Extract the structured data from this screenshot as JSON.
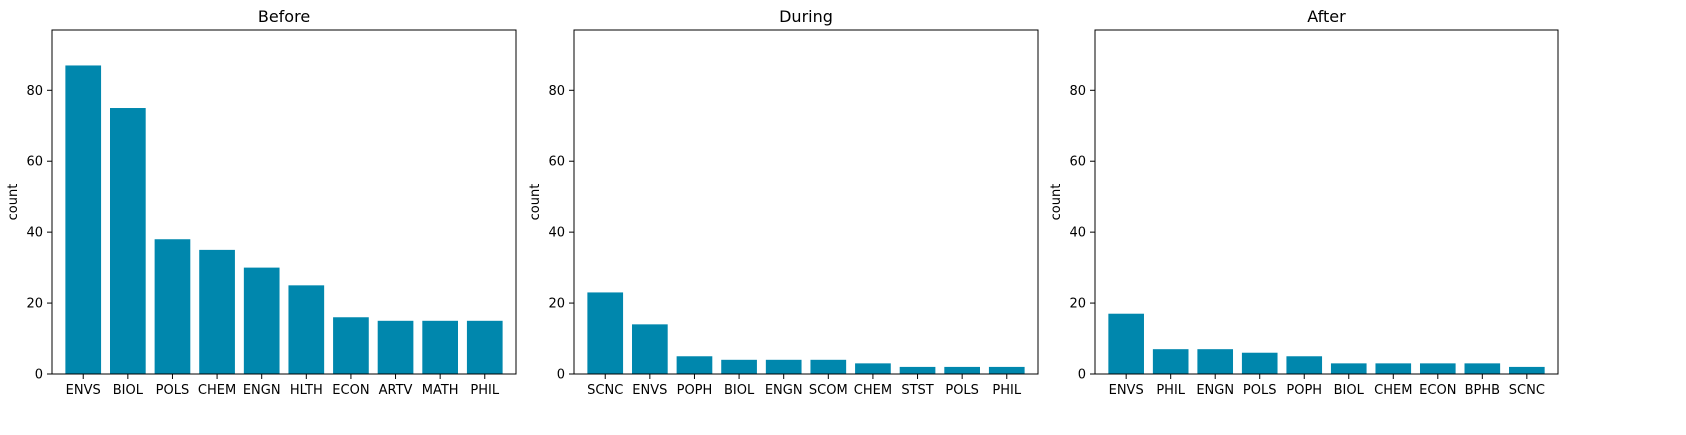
{
  "chart_data": [
    {
      "type": "bar",
      "title": "Before",
      "ylabel": "count",
      "xlabel": "",
      "ylim": [
        0,
        97
      ],
      "yticks": [
        0,
        20,
        40,
        60,
        80
      ],
      "color": "#0087ad",
      "categories": [
        "ENVS",
        "BIOL",
        "POLS",
        "CHEM",
        "ENGN",
        "HLTH",
        "ECON",
        "ARTV",
        "MATH",
        "PHIL"
      ],
      "values": [
        87,
        75,
        38,
        35,
        30,
        25,
        16,
        15,
        15,
        15
      ]
    },
    {
      "type": "bar",
      "title": "During",
      "ylabel": "count",
      "xlabel": "",
      "ylim": [
        0,
        97
      ],
      "yticks": [
        0,
        20,
        40,
        60,
        80
      ],
      "color": "#0087ad",
      "categories": [
        "SCNC",
        "ENVS",
        "POPH",
        "BIOL",
        "ENGN",
        "SCOM",
        "CHEM",
        "STST",
        "POLS",
        "PHIL"
      ],
      "values": [
        23,
        14,
        5,
        4,
        4,
        4,
        3,
        2,
        2,
        2
      ]
    },
    {
      "type": "bar",
      "title": "After",
      "ylabel": "count",
      "xlabel": "",
      "ylim": [
        0,
        97
      ],
      "yticks": [
        0,
        20,
        40,
        60,
        80
      ],
      "color": "#0087ad",
      "categories": [
        "ENVS",
        "PHIL",
        "ENGN",
        "POLS",
        "POPH",
        "BIOL",
        "CHEM",
        "ECON",
        "BPHB",
        "SCNC"
      ],
      "values": [
        17,
        7,
        7,
        6,
        5,
        3,
        3,
        3,
        3,
        2
      ]
    }
  ]
}
